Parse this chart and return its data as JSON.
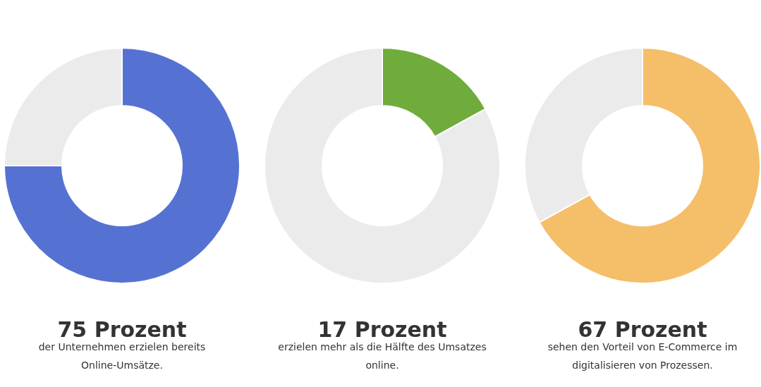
{
  "chart_data": [
    {
      "type": "donut",
      "title": "75 Prozent",
      "subtitle": "der Unternehmen erzielen bereits Online-Umsätze.",
      "categories": [
        null,
        null
      ],
      "values": [
        75,
        25
      ],
      "colors": [
        "#5572d3",
        "#ebebeb"
      ]
    },
    {
      "type": "donut",
      "title": "17 Prozent",
      "subtitle": "erzielen mehr als die Hälfte des Umsatzes online.",
      "categories": [
        null,
        null
      ],
      "values": [
        17,
        83
      ],
      "colors": [
        "#6fac3c",
        "#ebebeb"
      ]
    },
    {
      "type": "donut",
      "title": "67 Prozent",
      "subtitle": "sehen den Vorteil von E-Commerce im digitalisieren von Prozessen.",
      "categories": [
        null,
        null
      ],
      "values": [
        67,
        33
      ],
      "colors": [
        "#f5be69",
        "#ebebeb"
      ]
    }
  ]
}
